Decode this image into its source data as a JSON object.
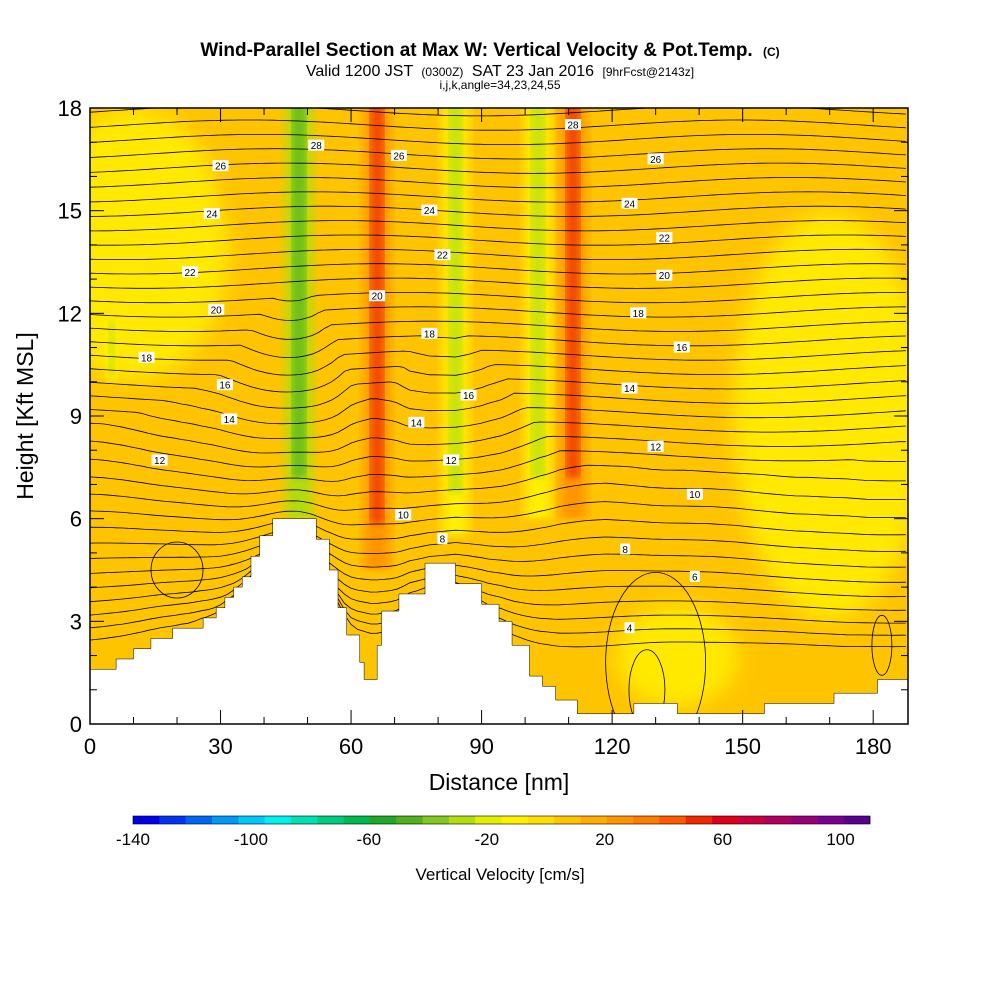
{
  "chart_data": {
    "type": "heatmap",
    "title": "Wind-Parallel Section at Max W: Vertical Velocity & Pot.Temp.",
    "title_suffix": "(C)",
    "subtitle": {
      "valid_label": "Valid 1200 JST",
      "utc": "(0300Z)",
      "date": "SAT 23 Jan 2016",
      "forecast": "[9hrFcst@2143z]"
    },
    "indices": "i,j,k,angle=34,23,24,55",
    "xlabel": "Distance [nm]",
    "ylabel": "Height [Kft MSL]",
    "xlim": [
      0,
      188
    ],
    "ylim": [
      0,
      18
    ],
    "x_ticks": [
      "0",
      "30",
      "60",
      "90",
      "120",
      "150",
      "180"
    ],
    "y_ticks": [
      "0",
      "3",
      "6",
      "9",
      "12",
      "15",
      "18"
    ],
    "colorbar": {
      "label": "Vertical Velocity [cm/s]",
      "range": [
        -140,
        110
      ],
      "tick_labels": [
        "-140",
        "-100",
        "-60",
        "-20",
        "20",
        "60",
        "100"
      ],
      "colors": [
        "#0000e6",
        "#0033ee",
        "#0066f2",
        "#0099f6",
        "#00c8f8",
        "#00f0f0",
        "#00e0b0",
        "#00cc80",
        "#00b850",
        "#20a828",
        "#50b020",
        "#80c820",
        "#b0dc10",
        "#e0f000",
        "#fff000",
        "#ffdd00",
        "#ffc400",
        "#ffac00",
        "#ff9400",
        "#ff7c00",
        "#ff5a00",
        "#ee2800",
        "#dd0018",
        "#c80040",
        "#b00060",
        "#98007a",
        "#7c0090",
        "#580090"
      ]
    },
    "vertical_velocity_features": [
      {
        "x": 48,
        "value": -50,
        "y_min": 6.0,
        "y_max": 18
      },
      {
        "x": 66,
        "value": 55,
        "y_min": 4.5,
        "y_max": 18
      },
      {
        "x": 84,
        "value": -30,
        "y_min": 5.5,
        "y_max": 18
      },
      {
        "x": 103,
        "value": -25,
        "y_min": 6.0,
        "y_max": 18
      },
      {
        "x": 111,
        "value": 50,
        "y_min": 6.0,
        "y_max": 18
      },
      {
        "x": 5,
        "value": -30,
        "y_min": 10.0,
        "y_max": 11.5
      }
    ],
    "potential_temperature_labels": [
      {
        "text": "28",
        "x": 52,
        "y": 16.9
      },
      {
        "text": "26",
        "x": 30,
        "y": 16.3
      },
      {
        "text": "24",
        "x": 28,
        "y": 14.9
      },
      {
        "text": "22",
        "x": 23,
        "y": 13.2
      },
      {
        "text": "20",
        "x": 29,
        "y": 12.1
      },
      {
        "text": "18",
        "x": 13,
        "y": 10.7
      },
      {
        "text": "16",
        "x": 31,
        "y": 9.9
      },
      {
        "text": "14",
        "x": 32,
        "y": 8.9
      },
      {
        "text": "12",
        "x": 16,
        "y": 7.7
      },
      {
        "text": "26",
        "x": 71,
        "y": 16.6
      },
      {
        "text": "24",
        "x": 78,
        "y": 15.0
      },
      {
        "text": "22",
        "x": 81,
        "y": 13.7
      },
      {
        "text": "20",
        "x": 66,
        "y": 12.5
      },
      {
        "text": "18",
        "x": 78,
        "y": 11.4
      },
      {
        "text": "16",
        "x": 87,
        "y": 9.6
      },
      {
        "text": "14",
        "x": 75,
        "y": 8.8
      },
      {
        "text": "12",
        "x": 83,
        "y": 7.7
      },
      {
        "text": "10",
        "x": 72,
        "y": 6.1
      },
      {
        "text": "8",
        "x": 81,
        "y": 5.4
      },
      {
        "text": "28",
        "x": 111,
        "y": 17.5
      },
      {
        "text": "26",
        "x": 130,
        "y": 16.5
      },
      {
        "text": "24",
        "x": 124,
        "y": 15.2
      },
      {
        "text": "22",
        "x": 132,
        "y": 14.2
      },
      {
        "text": "20",
        "x": 132,
        "y": 13.1
      },
      {
        "text": "18",
        "x": 126,
        "y": 12.0
      },
      {
        "text": "16",
        "x": 136,
        "y": 11.0
      },
      {
        "text": "14",
        "x": 124,
        "y": 9.8
      },
      {
        "text": "12",
        "x": 130,
        "y": 8.1
      },
      {
        "text": "10",
        "x": 139,
        "y": 6.7
      },
      {
        "text": "8",
        "x": 123,
        "y": 5.1
      },
      {
        "text": "6",
        "x": 139,
        "y": 4.3
      },
      {
        "text": "4",
        "x": 124,
        "y": 2.8
      }
    ],
    "terrain_profile": [
      [
        0,
        1.6
      ],
      [
        6,
        1.6
      ],
      [
        6,
        1.9
      ],
      [
        10,
        1.9
      ],
      [
        10,
        2.2
      ],
      [
        14,
        2.2
      ],
      [
        14,
        2.5
      ],
      [
        19,
        2.5
      ],
      [
        19,
        2.8
      ],
      [
        26,
        2.8
      ],
      [
        26,
        3.1
      ],
      [
        29,
        3.1
      ],
      [
        29,
        3.4
      ],
      [
        31,
        3.4
      ],
      [
        31,
        3.7
      ],
      [
        33,
        3.7
      ],
      [
        33,
        4.0
      ],
      [
        35,
        4.0
      ],
      [
        35,
        4.3
      ],
      [
        37,
        4.3
      ],
      [
        37,
        4.9
      ],
      [
        39,
        4.9
      ],
      [
        39,
        5.5
      ],
      [
        42,
        5.5
      ],
      [
        42,
        6.0
      ],
      [
        52,
        6.0
      ],
      [
        52,
        5.4
      ],
      [
        55,
        5.4
      ],
      [
        55,
        4.5
      ],
      [
        57,
        4.5
      ],
      [
        57,
        3.4
      ],
      [
        59,
        3.4
      ],
      [
        59,
        2.6
      ],
      [
        62,
        2.6
      ],
      [
        62,
        1.8
      ],
      [
        63,
        1.8
      ],
      [
        63,
        1.3
      ],
      [
        66,
        1.3
      ],
      [
        66,
        2.3
      ],
      [
        67,
        2.3
      ],
      [
        67,
        3.3
      ],
      [
        71,
        3.3
      ],
      [
        71,
        3.8
      ],
      [
        77,
        3.8
      ],
      [
        77,
        4.7
      ],
      [
        84,
        4.7
      ],
      [
        84,
        4.1
      ],
      [
        90,
        4.1
      ],
      [
        90,
        3.5
      ],
      [
        94,
        3.5
      ],
      [
        94,
        3.0
      ],
      [
        97,
        3.0
      ],
      [
        97,
        2.3
      ],
      [
        101,
        2.3
      ],
      [
        101,
        1.4
      ],
      [
        104,
        1.4
      ],
      [
        104,
        1.1
      ],
      [
        107,
        1.1
      ],
      [
        107,
        0.7
      ],
      [
        112,
        0.7
      ],
      [
        112,
        0.3
      ],
      [
        125,
        0.3
      ],
      [
        125,
        0.6
      ],
      [
        135,
        0.6
      ],
      [
        135,
        0.3
      ],
      [
        155,
        0.3
      ],
      [
        155,
        0.6
      ],
      [
        171,
        0.6
      ],
      [
        171,
        0.9
      ],
      [
        181,
        0.9
      ],
      [
        181,
        1.3
      ],
      [
        188,
        1.3
      ]
    ]
  }
}
